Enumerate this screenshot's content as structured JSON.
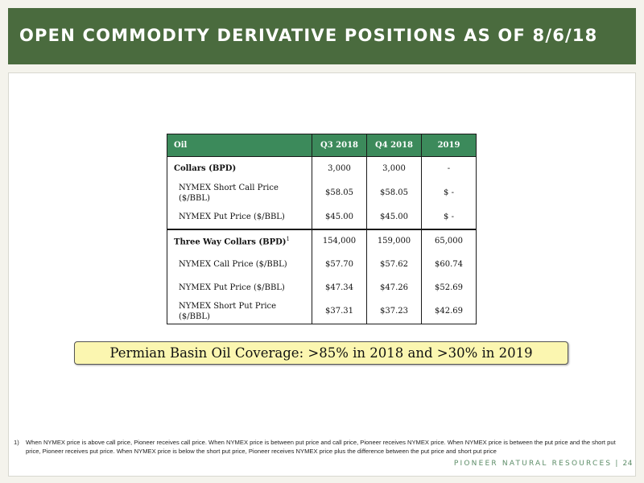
{
  "header": {
    "title": "OPEN COMMODITY DERIVATIVE POSITIONS AS OF 8/6/18"
  },
  "table": {
    "headers": [
      "Oil",
      "Q3 2018",
      "Q4 2018",
      "2019"
    ],
    "rows": [
      {
        "label": "Collars (BPD)",
        "values": [
          "3,000",
          "3,000",
          "-"
        ]
      },
      {
        "label": "NYMEX Short Call Price ($/BBL)",
        "values": [
          "$58.05",
          "$58.05",
          "$ -"
        ]
      },
      {
        "label": "NYMEX Put Price ($/BBL)",
        "values": [
          "$45.00",
          "$45.00",
          "$ -"
        ]
      },
      {
        "label": "Three Way Collars (BPD)",
        "footnote_marker": "1",
        "values": [
          "154,000",
          "159,000",
          "65,000"
        ]
      },
      {
        "label": "NYMEX Call Price ($/BBL)",
        "values": [
          "$57.70",
          "$57.62",
          "$60.74"
        ]
      },
      {
        "label": "NYMEX Put Price ($/BBL)",
        "values": [
          "$47.34",
          "$47.26",
          "$52.69"
        ]
      },
      {
        "label": "NYMEX Short Put Price ($/BBL)",
        "values": [
          "$37.31",
          "$37.23",
          "$42.69"
        ]
      }
    ]
  },
  "callout": {
    "text": "Permian Basin Oil Coverage: >85% in 2018 and >30% in 2019"
  },
  "footnote": {
    "number": "1)",
    "text": "When NYMEX price is above call price, Pioneer receives call price. When NYMEX price is between put price and call price, Pioneer receives NYMEX price.  When NYMEX price is between the put price and the short put price, Pioneer receives put price. When NYMEX price is below the short put price,  Pioneer receives NYMEX price plus the difference between the put price and short put price"
  },
  "footer": {
    "brand": "PIONEER NATURAL RESOURCES",
    "separator": "|",
    "page_number": "24"
  },
  "colors": {
    "header_bg": "#4a6b3e",
    "table_header_bg": "#3c8a5b",
    "callout_bg": "#fbf6b0",
    "brand_text": "#5c8c67"
  }
}
